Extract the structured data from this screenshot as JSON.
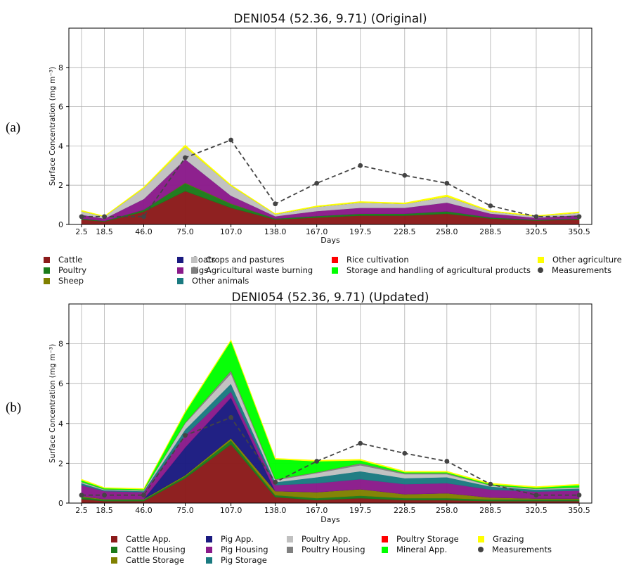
{
  "panel_labels": [
    "(a)",
    "(b)"
  ],
  "chart_data": [
    {
      "type": "area",
      "stacked": true,
      "title": "DENI054 (52.36, 9.71) (Original)",
      "xlabel": "Days",
      "ylabel": "Surface Concentration (mg m⁻³)",
      "x": [
        2.5,
        18.5,
        46.0,
        75.0,
        107.0,
        138.0,
        167.0,
        197.5,
        228.5,
        258.0,
        288.5,
        320.5,
        350.5
      ],
      "x_tick_labels": [
        "2.5",
        "18.5",
        "46.0",
        "75.0",
        "107.0",
        "138.0",
        "167.0",
        "197.5",
        "228.5",
        "258.0",
        "288.5",
        "320.5",
        "350.5"
      ],
      "ylim": [
        0,
        10
      ],
      "yticks": [
        0,
        2,
        4,
        6,
        8
      ],
      "grid": true,
      "series": [
        {
          "name": "Cattle",
          "color": "#8b1a1a",
          "values": [
            0.25,
            0.15,
            0.65,
            1.7,
            0.85,
            0.25,
            0.35,
            0.45,
            0.45,
            0.55,
            0.3,
            0.2,
            0.25
          ]
        },
        {
          "name": "Poultry",
          "color": "#1a7a1a",
          "values": [
            0.05,
            0.03,
            0.1,
            0.4,
            0.2,
            0.05,
            0.08,
            0.1,
            0.1,
            0.12,
            0.06,
            0.04,
            0.05
          ]
        },
        {
          "name": "Sheep",
          "color": "#808000",
          "values": [
            0.0,
            0.0,
            0.0,
            0.03,
            0.02,
            0.0,
            0.0,
            0.0,
            0.0,
            0.0,
            0.0,
            0.0,
            0.0
          ]
        },
        {
          "name": "Goats",
          "color": "#1a1a80",
          "values": [
            0.0,
            0.0,
            0.0,
            0.0,
            0.0,
            0.0,
            0.0,
            0.0,
            0.0,
            0.0,
            0.0,
            0.0,
            0.0
          ]
        },
        {
          "name": "Pigs",
          "color": "#8a1a8a",
          "values": [
            0.2,
            0.12,
            0.55,
            1.2,
            0.4,
            0.12,
            0.25,
            0.3,
            0.3,
            0.45,
            0.2,
            0.1,
            0.18
          ]
        },
        {
          "name": "Other animals",
          "color": "#1a7a80",
          "values": [
            0.0,
            0.0,
            0.0,
            0.0,
            0.0,
            0.0,
            0.0,
            0.0,
            0.0,
            0.0,
            0.0,
            0.0,
            0.0
          ]
        },
        {
          "name": "Crops and pastures",
          "color": "#c0c0c0",
          "values": [
            0.17,
            0.1,
            0.55,
            0.62,
            0.5,
            0.1,
            0.22,
            0.27,
            0.2,
            0.3,
            0.1,
            0.08,
            0.12
          ]
        },
        {
          "name": "Agricultural waste burning",
          "color": "#808080",
          "values": [
            0.0,
            0.0,
            0.0,
            0.0,
            0.0,
            0.0,
            0.0,
            0.0,
            0.0,
            0.0,
            0.0,
            0.0,
            0.0
          ]
        },
        {
          "name": "Rice cultivation",
          "color": "#ff0000",
          "values": [
            0.0,
            0.0,
            0.0,
            0.0,
            0.0,
            0.0,
            0.0,
            0.0,
            0.0,
            0.0,
            0.0,
            0.0,
            0.0
          ]
        },
        {
          "name": "Storage and handling of agricultural products",
          "color": "#00ff00",
          "values": [
            0.0,
            0.0,
            0.0,
            0.0,
            0.0,
            0.0,
            0.0,
            0.0,
            0.0,
            0.0,
            0.0,
            0.0,
            0.0
          ]
        },
        {
          "name": "Other agriculture",
          "color": "#ffff00",
          "values": [
            0.05,
            0.03,
            0.05,
            0.1,
            0.05,
            0.03,
            0.05,
            0.05,
            0.05,
            0.08,
            0.04,
            0.03,
            0.05
          ]
        }
      ],
      "measurements": {
        "name": "Measurements",
        "color": "#444444",
        "values": [
          0.4,
          0.4,
          0.4,
          3.4,
          4.3,
          1.05,
          2.1,
          3.0,
          2.5,
          2.1,
          0.95,
          0.4,
          0.4
        ]
      },
      "legend": [
        [
          "Cattle",
          "Poultry",
          "Sheep"
        ],
        [
          "Goats",
          "Pigs",
          "Other animals"
        ],
        [
          "Crops and pastures",
          "Agricultural waste burning"
        ],
        [
          "Rice cultivation",
          "Storage and handling of agricultural products"
        ],
        [
          "Other agriculture",
          "Measurements"
        ]
      ]
    },
    {
      "type": "area",
      "stacked": true,
      "title": "DENI054 (52.36, 9.71) (Updated)",
      "xlabel": "Days",
      "ylabel": "Surface Concentration (mg m⁻³)",
      "x": [
        2.5,
        18.5,
        46.0,
        75.0,
        107.0,
        138.0,
        167.0,
        197.5,
        228.5,
        258.0,
        288.5,
        320.5,
        350.5
      ],
      "x_tick_labels": [
        "2.5",
        "18.5",
        "46.0",
        "75.0",
        "107.0",
        "138.0",
        "167.0",
        "197.5",
        "228.5",
        "258.0",
        "288.5",
        "320.5",
        "350.5"
      ],
      "ylim": [
        0,
        10
      ],
      "yticks": [
        0,
        2,
        4,
        6,
        8
      ],
      "grid": true,
      "series": [
        {
          "name": "Cattle App.",
          "color": "#8b1a1a",
          "values": [
            0.2,
            0.1,
            0.1,
            1.25,
            2.95,
            0.3,
            0.15,
            0.25,
            0.15,
            0.15,
            0.1,
            0.1,
            0.1
          ]
        },
        {
          "name": "Cattle Housing",
          "color": "#1a7a1a",
          "values": [
            0.1,
            0.07,
            0.07,
            0.1,
            0.2,
            0.1,
            0.1,
            0.12,
            0.1,
            0.1,
            0.08,
            0.08,
            0.08
          ]
        },
        {
          "name": "Cattle Storage",
          "color": "#808000",
          "values": [
            0.05,
            0.03,
            0.03,
            0.05,
            0.1,
            0.2,
            0.3,
            0.33,
            0.2,
            0.25,
            0.1,
            0.05,
            0.05
          ]
        },
        {
          "name": "Pig App.",
          "color": "#1a1a80",
          "values": [
            0.0,
            0.0,
            0.0,
            1.4,
            2.05,
            0.0,
            0.0,
            0.0,
            0.0,
            0.0,
            0.0,
            0.0,
            0.0
          ]
        },
        {
          "name": "Pig Housing",
          "color": "#8a1a8a",
          "values": [
            0.55,
            0.4,
            0.35,
            0.6,
            0.3,
            0.3,
            0.45,
            0.5,
            0.5,
            0.5,
            0.4,
            0.35,
            0.4
          ]
        },
        {
          "name": "Pig Storage",
          "color": "#1a7a80",
          "values": [
            0.1,
            0.05,
            0.05,
            0.3,
            0.4,
            0.15,
            0.3,
            0.4,
            0.3,
            0.3,
            0.15,
            0.1,
            0.1
          ]
        },
        {
          "name": "Poultry App.",
          "color": "#c0c0c0",
          "values": [
            0.05,
            0.03,
            0.03,
            0.3,
            0.5,
            0.1,
            0.2,
            0.3,
            0.2,
            0.15,
            0.05,
            0.03,
            0.05
          ]
        },
        {
          "name": "Poultry Housing",
          "color": "#808080",
          "values": [
            0.02,
            0.02,
            0.02,
            0.05,
            0.15,
            0.05,
            0.05,
            0.1,
            0.05,
            0.05,
            0.02,
            0.02,
            0.02
          ]
        },
        {
          "name": "Poultry Storage",
          "color": "#ff0000",
          "values": [
            0.0,
            0.0,
            0.0,
            0.0,
            0.0,
            0.0,
            0.0,
            0.0,
            0.0,
            0.0,
            0.0,
            0.0,
            0.0
          ]
        },
        {
          "name": "Mineral App.",
          "color": "#00ff00",
          "values": [
            0.08,
            0.05,
            0.05,
            0.5,
            1.5,
            1.0,
            0.55,
            0.15,
            0.05,
            0.05,
            0.05,
            0.05,
            0.1
          ]
        },
        {
          "name": "Grazing",
          "color": "#ffff00",
          "values": [
            0.05,
            0.03,
            0.03,
            0.05,
            0.05,
            0.05,
            0.05,
            0.05,
            0.05,
            0.05,
            0.05,
            0.05,
            0.05
          ]
        }
      ],
      "measurements": {
        "name": "Measurements",
        "color": "#444444",
        "values": [
          0.4,
          0.4,
          0.4,
          3.4,
          4.3,
          1.05,
          2.1,
          3.0,
          2.5,
          2.1,
          0.95,
          0.4,
          0.4
        ]
      },
      "legend": [
        [
          "Cattle App.",
          "Cattle Housing",
          "Cattle Storage"
        ],
        [
          "Pig App.",
          "Pig Housing",
          "Pig Storage"
        ],
        [
          "Poultry App.",
          "Poultry Housing"
        ],
        [
          "Poultry Storage",
          "Mineral App."
        ],
        [
          "Grazing",
          "Measurements"
        ]
      ]
    }
  ]
}
